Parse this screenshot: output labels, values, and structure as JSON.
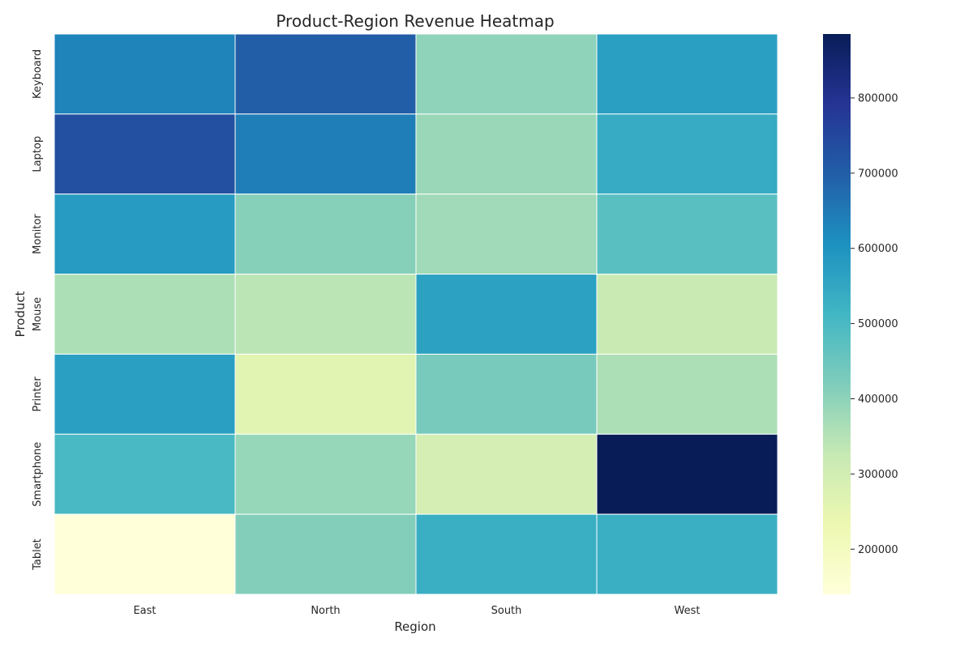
{
  "chart_data": {
    "type": "heatmap",
    "title": "Product-Region Revenue Heatmap",
    "xlabel": "Region",
    "ylabel": "Product",
    "x_categories": [
      "East",
      "North",
      "South",
      "West"
    ],
    "y_categories": [
      "Keyboard",
      "Laptop",
      "Monitor",
      "Mouse",
      "Printer",
      "Smartphone",
      "Tablet"
    ],
    "values": [
      [
        630000,
        700000,
        400000,
        570000
      ],
      [
        730000,
        640000,
        385000,
        540000
      ],
      [
        580000,
        410000,
        375000,
        475000
      ],
      [
        360000,
        340000,
        565000,
        320000
      ],
      [
        570000,
        260000,
        430000,
        360000
      ],
      [
        500000,
        390000,
        295000,
        885000
      ],
      [
        140000,
        415000,
        530000,
        530000
      ]
    ],
    "colorbar": {
      "range": [
        140000,
        885000
      ],
      "ticks": [
        200000,
        300000,
        400000,
        500000,
        600000,
        700000,
        800000
      ]
    },
    "colormap": "YlGnBu",
    "colormap_stops": [
      "#ffffd9",
      "#edf8b1",
      "#c7e9b4",
      "#7fcdbb",
      "#41b6c4",
      "#1d91c0",
      "#225ea8",
      "#253494",
      "#081d58"
    ],
    "grid": false
  }
}
